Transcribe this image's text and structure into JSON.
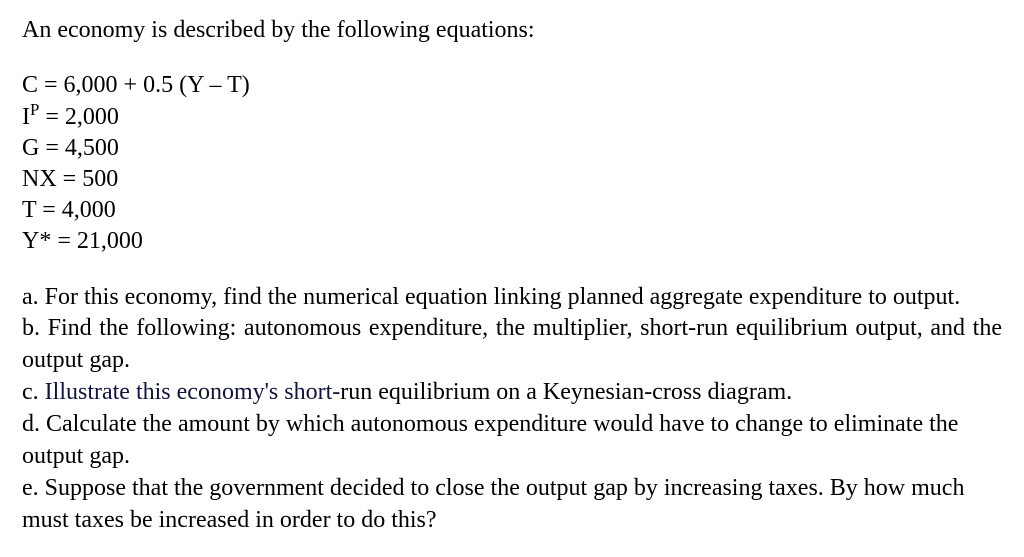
{
  "intro": "An economy is described by the following equations:",
  "equations": {
    "c": "C = 6,000 + 0.5 (Y – T)",
    "ip_lhs": "I",
    "ip_sup": "P",
    "ip_rhs": " = 2,000",
    "g": "G = 4,500",
    "nx": "NX = 500",
    "t": "T = 4,000",
    "ystar": "Y* = 21,000"
  },
  "questions": {
    "a": "a. For this economy, find the numerical equation linking planned aggregate expenditure to output.",
    "b": "b. Find the following: autonomous expenditure, the multiplier, short-run equilibrium output, and the output gap.",
    "c_pre": "c. ",
    "c_accent": "Illustrate this economy's short-",
    "c_post": "run equilibrium on a Keynesian-cross diagram.",
    "d": "d. Calculate the amount by which autonomous expenditure would have to change to eliminate the output gap.",
    "e": "e. Suppose that the government decided to close the output gap by increasing taxes. By how much must taxes be increased in order to do this?"
  },
  "colors": {
    "background": "#ffffff",
    "text": "#000000",
    "accent": "#11143e"
  },
  "typography": {
    "font_family": "Times New Roman",
    "font_size_pt": 18
  }
}
